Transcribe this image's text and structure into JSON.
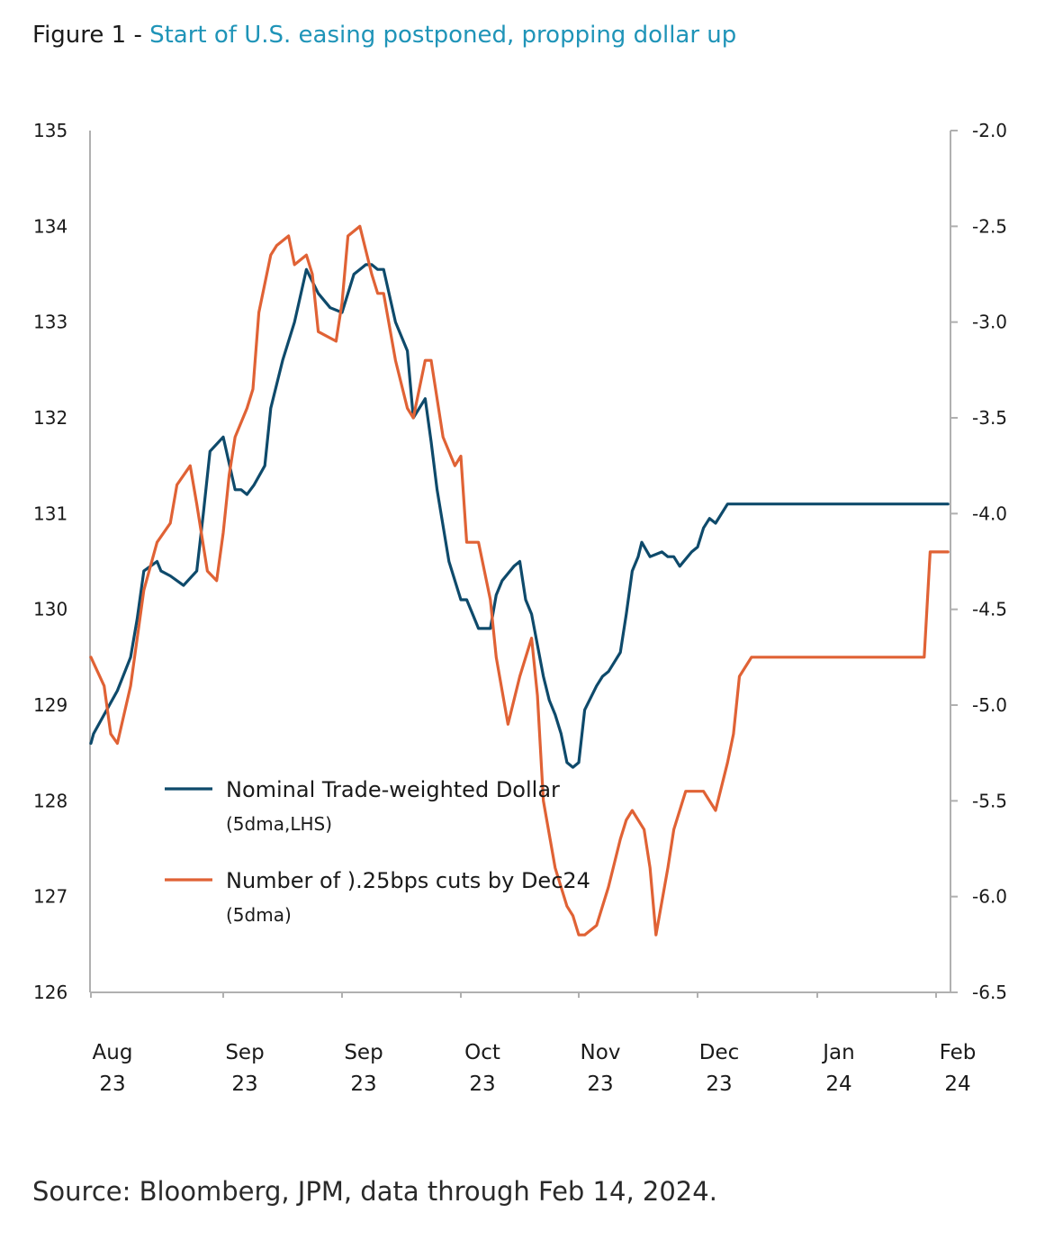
{
  "header": {
    "figure_label": "Figure 1 - ",
    "title": "Start of U.S. easing postponed, propping dollar up"
  },
  "footer": {
    "source": "Source: Bloomberg, JPM, data through Feb 14, 2024."
  },
  "colors": {
    "dollar": "#0e4a6b",
    "cuts": "#e06235",
    "accent": "#1f94b8",
    "axis": "#b0b0b0"
  },
  "chart_data": {
    "type": "line",
    "title": "Start of U.S. easing postponed, propping dollar up",
    "y_left": {
      "ylim": [
        126,
        135
      ],
      "ticks": [
        "135",
        "134",
        "133",
        "132",
        "131",
        "130",
        "129",
        "128",
        "127",
        "126"
      ]
    },
    "y_right": {
      "ylim": [
        -6.5,
        -2.0
      ],
      "ticks": [
        "-2.0",
        "-2.5",
        "-3.0",
        "-3.5",
        "-4.0",
        "-4.5",
        "-5.0",
        "-5.5",
        "-6.0",
        "-6.5"
      ]
    },
    "x_ticks": [
      {
        "month": "Aug",
        "year": "23"
      },
      {
        "month": "Sep",
        "year": "23"
      },
      {
        "month": "Sep",
        "year": "23"
      },
      {
        "month": "Oct",
        "year": "23"
      },
      {
        "month": "Nov",
        "year": "23"
      },
      {
        "month": "Dec",
        "year": "23"
      },
      {
        "month": "Jan",
        "year": "24"
      },
      {
        "month": "Feb",
        "year": "24"
      }
    ],
    "legend": [
      {
        "name": "Nominal Trade-weighted Dollar",
        "sub": "(5dma,LHS)"
      },
      {
        "name": "Number of ).25bps cuts by Dec24",
        "sub": "(5dma)"
      }
    ],
    "series": [
      {
        "name": "Nominal Trade-weighted Dollar",
        "axis": "left",
        "x": [
          0,
          0.02,
          0.2,
          0.3,
          0.35,
          0.4,
          0.5,
          0.53,
          0.6,
          0.7,
          0.8,
          0.85,
          0.9,
          1.0,
          1.1,
          1.15,
          1.2,
          1.26,
          1.35,
          1.4,
          1.5,
          1.6,
          1.7,
          1.8,
          1.9,
          2.0,
          2.1,
          2.15,
          2.2,
          2.25,
          2.3,
          2.35,
          2.45,
          2.55,
          2.6,
          2.7,
          2.75,
          2.8,
          2.9,
          3.0,
          3.05,
          3.1,
          3.15,
          3.25,
          3.3,
          3.35,
          3.45,
          3.5,
          3.55,
          3.6,
          3.7,
          3.75,
          3.8,
          3.85,
          3.9,
          3.95,
          4.0,
          4.05,
          4.15,
          4.2,
          4.25,
          4.3,
          4.35,
          4.4,
          4.45,
          4.5,
          4.53,
          4.6,
          4.7,
          4.75,
          4.8,
          4.85,
          4.95,
          5.0,
          5.05,
          5.1,
          5.15,
          5.25,
          5.3,
          5.35,
          5.45,
          5.5,
          5.6,
          5.65,
          5.7,
          5.8,
          5.9,
          5.95,
          6.0,
          6.05,
          6.1,
          6.2,
          6.25,
          6.3,
          6.35,
          6.4,
          6.45,
          6.5,
          6.55,
          6.65,
          6.7,
          6.75,
          6.8,
          6.85,
          6.9,
          6.95,
          7.0,
          7.05,
          7.1
        ],
        "values": [
          128.6,
          128.7,
          129.15,
          129.5,
          129.9,
          130.4,
          130.5,
          130.4,
          130.35,
          130.25,
          130.4,
          131.0,
          131.65,
          131.8,
          131.25,
          131.25,
          131.2,
          131.3,
          131.5,
          132.1,
          132.6,
          133.0,
          133.55,
          133.3,
          133.15,
          133.1,
          133.5,
          133.55,
          133.6,
          133.6,
          133.55,
          133.55,
          133.0,
          132.7,
          132.0,
          132.2,
          131.75,
          131.25,
          130.5,
          130.1,
          130.1,
          129.95,
          129.8,
          129.8,
          130.15,
          130.3,
          130.45,
          130.5,
          130.1,
          129.95,
          129.3,
          129.05,
          128.9,
          128.7,
          128.4,
          128.35,
          128.4,
          128.95,
          129.2,
          129.3,
          129.35,
          129.45,
          129.55,
          129.95,
          130.4,
          130.55,
          130.7,
          130.55,
          130.6,
          130.55,
          130.55,
          130.45,
          130.6,
          130.65,
          130.85,
          130.95,
          130.9,
          131.1,
          131.1,
          131.1,
          131.1,
          131.1,
          131.1,
          131.1,
          131.1,
          131.1,
          131.1,
          131.1,
          131.1,
          131.1,
          131.1,
          131.1,
          131.1,
          131.1,
          131.1,
          131.1,
          131.1,
          131.1,
          131.1,
          131.1,
          131.1,
          131.1,
          131.1,
          131.1,
          131.1,
          131.1,
          131.1,
          131.1,
          131.1
        ]
      },
      {
        "name": "Number of ).25bps cuts by Dec24",
        "axis": "right",
        "x": [
          0,
          0.1,
          0.15,
          0.2,
          0.3,
          0.4,
          0.5,
          0.6,
          0.65,
          0.75,
          0.8,
          0.88,
          0.95,
          1.0,
          1.05,
          1.1,
          1.2,
          1.25,
          1.3,
          1.4,
          1.45,
          1.55,
          1.6,
          1.7,
          1.75,
          1.8,
          1.95,
          2.0,
          2.05,
          2.15,
          2.25,
          2.3,
          2.35,
          2.45,
          2.55,
          2.6,
          2.7,
          2.75,
          2.85,
          2.95,
          3.0,
          3.05,
          3.15,
          3.25,
          3.3,
          3.4,
          3.5,
          3.6,
          3.65,
          3.7,
          3.8,
          3.9,
          3.95,
          4.0,
          4.05,
          4.15,
          4.25,
          4.35,
          4.4,
          4.45,
          4.55,
          4.6,
          4.65,
          4.75,
          4.8,
          4.9,
          4.95,
          5.0,
          5.05,
          5.15,
          5.25,
          5.3,
          5.35,
          5.45,
          5.55,
          5.65,
          5.75,
          5.85,
          5.9,
          5.95,
          6.0,
          6.05,
          6.1,
          6.15,
          6.25,
          6.3,
          6.35,
          6.45,
          6.5,
          6.55,
          6.65,
          6.7,
          6.8,
          6.85,
          6.9,
          6.95,
          7.0,
          7.05,
          7.1
        ],
        "values": [
          -4.75,
          -4.9,
          -5.15,
          -5.2,
          -4.9,
          -4.4,
          -4.15,
          -4.05,
          -3.85,
          -3.75,
          -3.95,
          -4.3,
          -4.35,
          -4.1,
          -3.8,
          -3.6,
          -3.45,
          -3.35,
          -2.95,
          -2.65,
          -2.6,
          -2.55,
          -2.7,
          -2.65,
          -2.75,
          -3.05,
          -3.1,
          -2.9,
          -2.55,
          -2.5,
          -2.75,
          -2.85,
          -2.85,
          -3.2,
          -3.45,
          -3.5,
          -3.2,
          -3.2,
          -3.6,
          -3.75,
          -3.7,
          -4.15,
          -4.15,
          -4.45,
          -4.75,
          -5.1,
          -4.85,
          -4.65,
          -4.95,
          -5.5,
          -5.85,
          -6.05,
          -6.1,
          -6.2,
          -6.2,
          -6.15,
          -5.95,
          -5.7,
          -5.6,
          -5.55,
          -5.65,
          -5.85,
          -6.2,
          -5.85,
          -5.65,
          -5.45,
          -5.45,
          -5.45,
          -5.45,
          -5.55,
          -5.3,
          -5.15,
          -4.85,
          -4.75,
          -4.75,
          -4.75,
          -4.75,
          -4.75,
          -4.75,
          -4.75,
          -4.75,
          -4.75,
          -4.75,
          -4.75,
          -4.75,
          -4.75,
          -4.75,
          -4.75,
          -4.75,
          -4.75,
          -4.75,
          -4.75,
          -4.75,
          -4.75,
          -4.75,
          -4.2,
          -4.2,
          -4.2,
          -4.2
        ]
      }
    ]
  }
}
